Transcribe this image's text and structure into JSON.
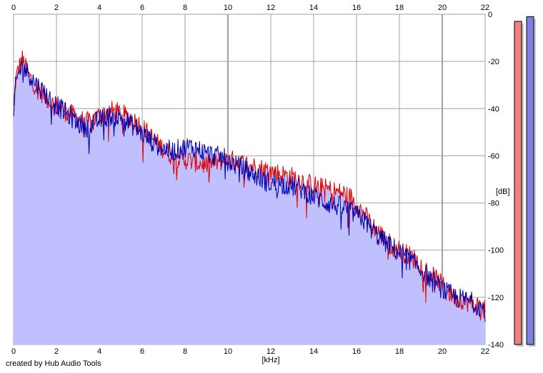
{
  "chart_data": {
    "type": "area",
    "xlabel": "[kHz]",
    "ylabel": "[dB]",
    "xlim": [
      0,
      22
    ],
    "ylim": [
      -140,
      0
    ],
    "x_ticks": [
      "0",
      "2",
      "4",
      "6",
      "8",
      "10",
      "12",
      "14",
      "16",
      "18",
      "20",
      "22"
    ],
    "y_ticks": [
      "0",
      "-20",
      "-40",
      "-60",
      "-80",
      "-100",
      "-120",
      "-140"
    ],
    "grid": true,
    "series": [
      {
        "color": "#e00000",
        "x": [
          0,
          0.1,
          0.2,
          0.4,
          0.7,
          1.0,
          1.4,
          1.8,
          2.2,
          2.6,
          3.0,
          3.4,
          3.8,
          4.2,
          4.6,
          5.0,
          5.4,
          5.8,
          6.2,
          6.6,
          7.0,
          7.4,
          7.8,
          8.2,
          8.6,
          9.0,
          9.4,
          9.8,
          10.2,
          10.6,
          11.0,
          11.4,
          11.8,
          12.2,
          12.6,
          13.0,
          13.4,
          13.8,
          14.2,
          14.6,
          15.0,
          15.4,
          15.8,
          16.2,
          16.6,
          17.0,
          17.4,
          17.8,
          18.2,
          18.6,
          19.0,
          19.4,
          19.8,
          20.2,
          20.6,
          21.0,
          21.4,
          21.8,
          22.0
        ],
        "values": [
          -40,
          -28,
          -24,
          -19,
          -26,
          -30,
          -34,
          -38,
          -40,
          -42,
          -44,
          -46,
          -44,
          -42,
          -41,
          -42,
          -44,
          -46,
          -50,
          -54,
          -57,
          -60,
          -61,
          -62,
          -63,
          -64,
          -63,
          -62,
          -62,
          -63,
          -64,
          -65,
          -66,
          -67,
          -68,
          -69,
          -70,
          -72,
          -73,
          -74,
          -75,
          -76,
          -78,
          -83,
          -88,
          -92,
          -96,
          -99,
          -101,
          -103,
          -106,
          -110,
          -113,
          -117,
          -120,
          -121,
          -123,
          -124,
          -126
        ]
      },
      {
        "color": "#0000b0",
        "x": [
          0,
          0.1,
          0.2,
          0.4,
          0.7,
          1.0,
          1.4,
          1.8,
          2.2,
          2.6,
          3.0,
          3.4,
          3.8,
          4.2,
          4.6,
          5.0,
          5.4,
          5.8,
          6.2,
          6.6,
          7.0,
          7.4,
          7.8,
          8.2,
          8.6,
          9.0,
          9.4,
          9.8,
          10.2,
          10.6,
          11.0,
          11.4,
          11.8,
          12.2,
          12.6,
          13.0,
          13.4,
          13.8,
          14.2,
          14.6,
          15.0,
          15.4,
          15.8,
          16.2,
          16.6,
          17.0,
          17.4,
          17.8,
          18.2,
          18.6,
          19.0,
          19.4,
          19.8,
          20.2,
          20.6,
          21.0,
          21.4,
          21.8,
          22.0
        ],
        "values": [
          -45,
          -30,
          -26,
          -22,
          -25,
          -29,
          -33,
          -37,
          -40,
          -43,
          -46,
          -48,
          -46,
          -44,
          -43,
          -44,
          -46,
          -49,
          -52,
          -55,
          -57,
          -58,
          -57,
          -56,
          -57,
          -59,
          -60,
          -61,
          -63,
          -65,
          -67,
          -69,
          -71,
          -72,
          -72,
          -73,
          -74,
          -76,
          -78,
          -80,
          -81,
          -82,
          -84,
          -86,
          -90,
          -94,
          -97,
          -100,
          -102,
          -105,
          -108,
          -112,
          -115,
          -118,
          -120,
          -121,
          -122,
          -124,
          -126
        ]
      }
    ],
    "level_meters": [
      {
        "color": "#f08080",
        "value_db": -3
      },
      {
        "color": "#8080e0",
        "value_db": -1
      }
    ]
  },
  "credit": "created by Hub Audio Tools",
  "colors": {
    "area_fill": "#c0c0ff",
    "grid": "#a0a0a0",
    "background": "#ffffff"
  }
}
